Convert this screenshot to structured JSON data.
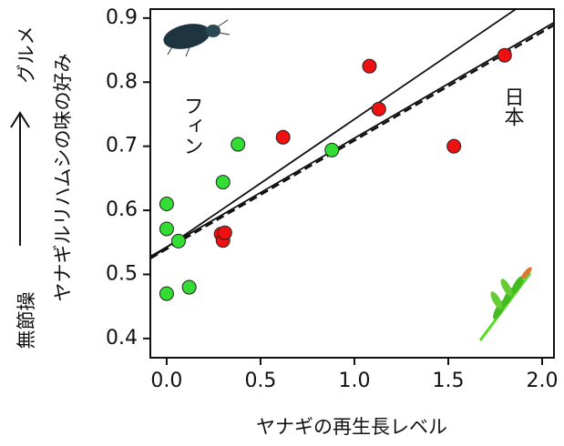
{
  "chart_data": {
    "type": "scatter",
    "y_label": "ヤナギルリハムシの味の好み",
    "x_label": "ヤナギの再生長レベル",
    "top_label": "グルメ",
    "bottom_label": "無節操",
    "xlim": [
      -0.087,
      2.063
    ],
    "ylim": [
      0.37,
      0.914
    ],
    "xticks": [
      {
        "value": 0,
        "label": "0.0"
      },
      0.5,
      {
        "value": 1,
        "label": "1.0"
      },
      1.5,
      {
        "value": 2,
        "label": "2.0"
      }
    ],
    "yticks": [
      0.4,
      0.5,
      0.6,
      0.7,
      0.8,
      0.9
    ],
    "series": [
      {
        "name": "フィン",
        "color": "#33dd33",
        "x": [
          0.0,
          0.0,
          0.0,
          0.063,
          0.12,
          0.3,
          0.38,
          0.88
        ],
        "values": [
          0.61,
          0.571,
          0.47,
          0.552,
          0.48,
          0.644,
          0.703,
          0.694
        ]
      },
      {
        "name": "日本",
        "color": "#ee1111",
        "x": [
          0.29,
          0.3,
          0.31,
          0.62,
          1.08,
          1.13,
          1.53,
          1.8
        ],
        "values": [
          0.563,
          0.553,
          0.565,
          0.714,
          0.825,
          0.758,
          0.7,
          0.842
        ]
      }
    ],
    "lines": [
      {
        "style": "solid",
        "x": [
          -0.087,
          1.86
        ],
        "values": [
          0.525,
          0.914
        ]
      },
      {
        "style": "solid",
        "x": [
          -0.087,
          2.063
        ],
        "values": [
          0.528,
          0.893
        ]
      },
      {
        "style": "dashed",
        "x": [
          -0.087,
          2.063
        ],
        "values": [
          0.525,
          0.889
        ]
      }
    ]
  }
}
